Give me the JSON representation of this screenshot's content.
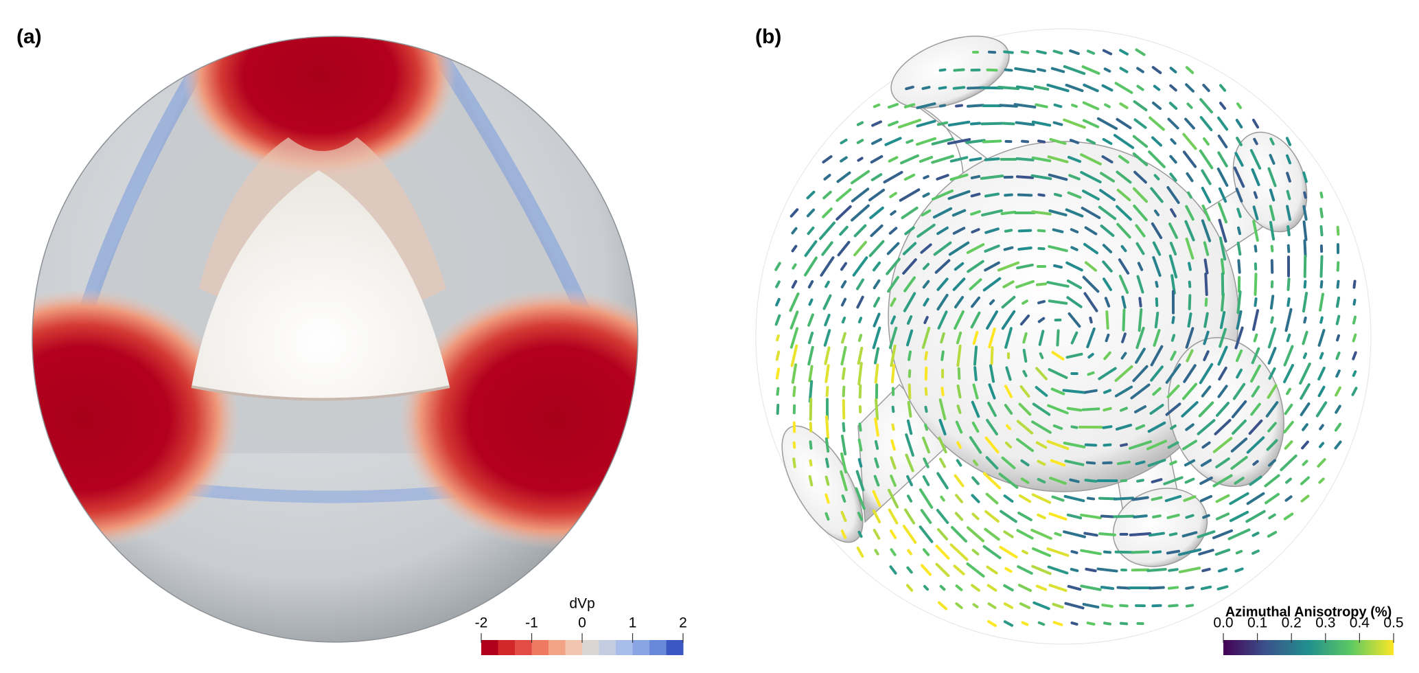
{
  "panels": [
    {
      "label": "(a)",
      "colorbar": {
        "title": "dVp",
        "range": [
          -2,
          2
        ],
        "ticks": [
          -2,
          -1,
          0,
          1,
          2
        ],
        "colors": [
          "#b0001c",
          "#d1262a",
          "#e34c45",
          "#ef7a62",
          "#f3a487",
          "#f1c5b0",
          "#d9d6d4",
          "#c3cde2",
          "#a9bdea",
          "#8aa5e4",
          "#6a88da",
          "#3c57c2"
        ]
      }
    },
    {
      "label": "(b)",
      "colorbar": {
        "title": "Azimuthal Anisotropy (%)",
        "range": [
          0,
          0.5
        ],
        "ticks": [
          {
            "value": 0,
            "label": "0.0"
          },
          0.1,
          0.2,
          0.3,
          0.4,
          0.5
        ],
        "colors": [
          "#440154",
          "#3b528b",
          "#21908d",
          "#5dc963",
          "#fde725"
        ]
      }
    }
  ]
}
